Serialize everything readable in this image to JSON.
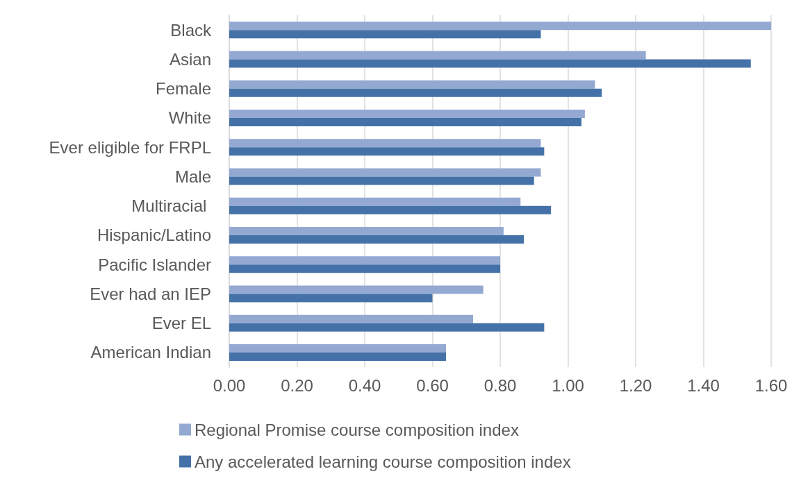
{
  "chart_data": {
    "type": "bar",
    "orientation": "horizontal",
    "categories": [
      "Black",
      "Asian",
      "Female",
      "White",
      "Ever eligible for FRPL",
      "Male",
      "Multiracial ",
      "Hispanic/Latino",
      "Pacific Islander",
      "Ever had an IEP",
      "Ever EL",
      "American Indian"
    ],
    "series": [
      {
        "name": "Regional Promise course composition index",
        "color": "#93a9d2",
        "values": [
          1.6,
          1.23,
          1.08,
          1.05,
          0.92,
          0.92,
          0.86,
          0.81,
          0.8,
          0.75,
          0.72,
          0.64
        ]
      },
      {
        "name": "Any accelerated learning course composition index",
        "color": "#4472a8",
        "values": [
          0.92,
          1.54,
          1.1,
          1.04,
          0.93,
          0.9,
          0.95,
          0.87,
          0.8,
          0.6,
          0.93,
          0.64
        ]
      }
    ],
    "xlim": [
      0,
      1.6
    ],
    "xticks": [
      {
        "value": 0,
        "label": "0.00"
      },
      {
        "value": 0.2,
        "label": "0.20"
      },
      {
        "value": 0.4,
        "label": "0.40"
      },
      {
        "value": 0.6,
        "label": "0.60"
      },
      {
        "value": 0.8,
        "label": "0.80"
      },
      {
        "value": 1,
        "label": "1.00"
      },
      {
        "value": 1.2,
        "label": "1.20"
      },
      {
        "value": 1.4,
        "label": "1.40"
      },
      {
        "value": 1.6,
        "label": "1.60"
      }
    ],
    "grid": "x",
    "legend": "bottom"
  }
}
